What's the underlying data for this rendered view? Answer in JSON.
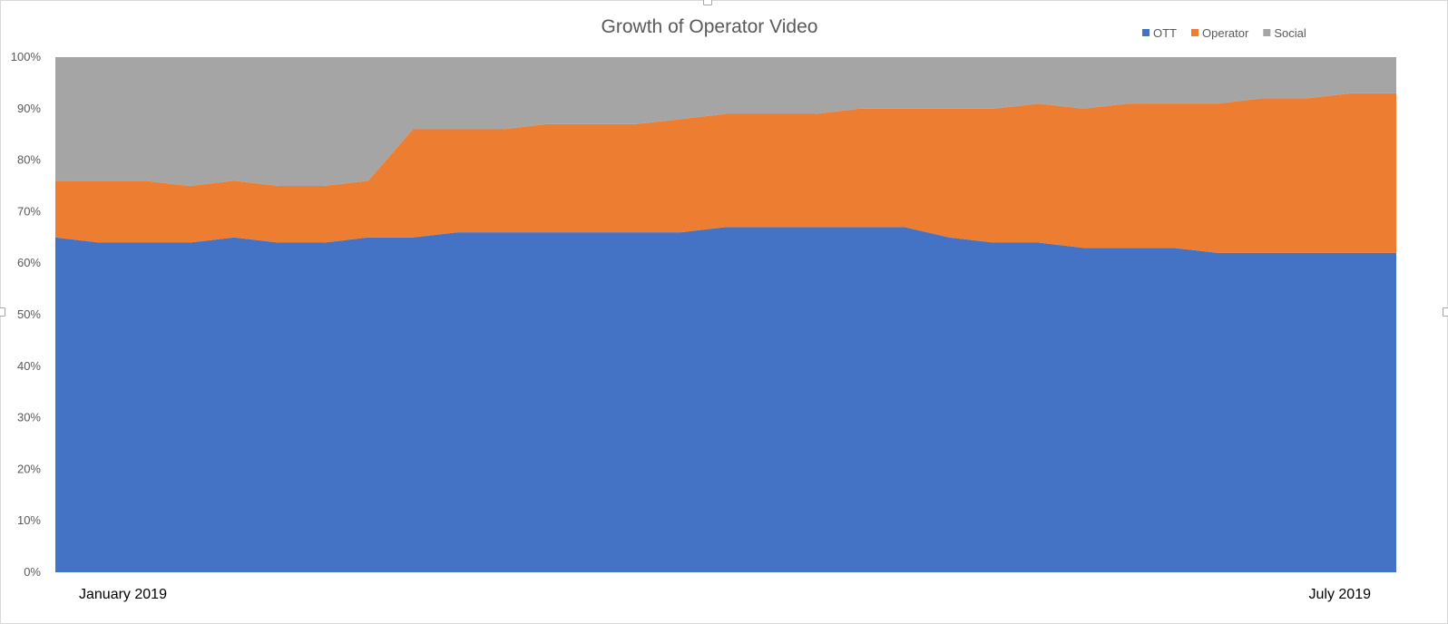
{
  "chart_data": {
    "type": "area",
    "stacking": "percent",
    "title": "Growth of Operator Video",
    "xlabel": "",
    "ylabel": "",
    "ylim": [
      0,
      100
    ],
    "y_ticks": [
      "0%",
      "10%",
      "20%",
      "30%",
      "40%",
      "50%",
      "60%",
      "70%",
      "80%",
      "90%",
      "100%"
    ],
    "x_labels": [
      "January 2019",
      "July 2019"
    ],
    "x_range": [
      "2019-01-01",
      "2019-07-01"
    ],
    "legend_position": "top-right",
    "grid": false,
    "series": [
      {
        "name": "OTT",
        "color": "#4472C4",
        "values": [
          65,
          64,
          64,
          64,
          65,
          64,
          64,
          65,
          65,
          66,
          66,
          66,
          66,
          66,
          66,
          67,
          67,
          67,
          67,
          67,
          65,
          64,
          64,
          63,
          63,
          63,
          62,
          62,
          62,
          62,
          62
        ]
      },
      {
        "name": "Operator",
        "color": "#ED7D31",
        "values": [
          11,
          12,
          12,
          11,
          11,
          11,
          11,
          11,
          21,
          20,
          20,
          21,
          21,
          21,
          22,
          22,
          22,
          22,
          23,
          23,
          25,
          26,
          27,
          27,
          28,
          28,
          29,
          30,
          30,
          31,
          31
        ]
      },
      {
        "name": "Social",
        "color": "#A5A5A5",
        "values": [
          24,
          24,
          24,
          25,
          24,
          25,
          25,
          24,
          14,
          14,
          14,
          13,
          13,
          13,
          12,
          11,
          11,
          11,
          10,
          10,
          10,
          10,
          9,
          10,
          9,
          9,
          9,
          8,
          8,
          7,
          7
        ]
      }
    ]
  }
}
